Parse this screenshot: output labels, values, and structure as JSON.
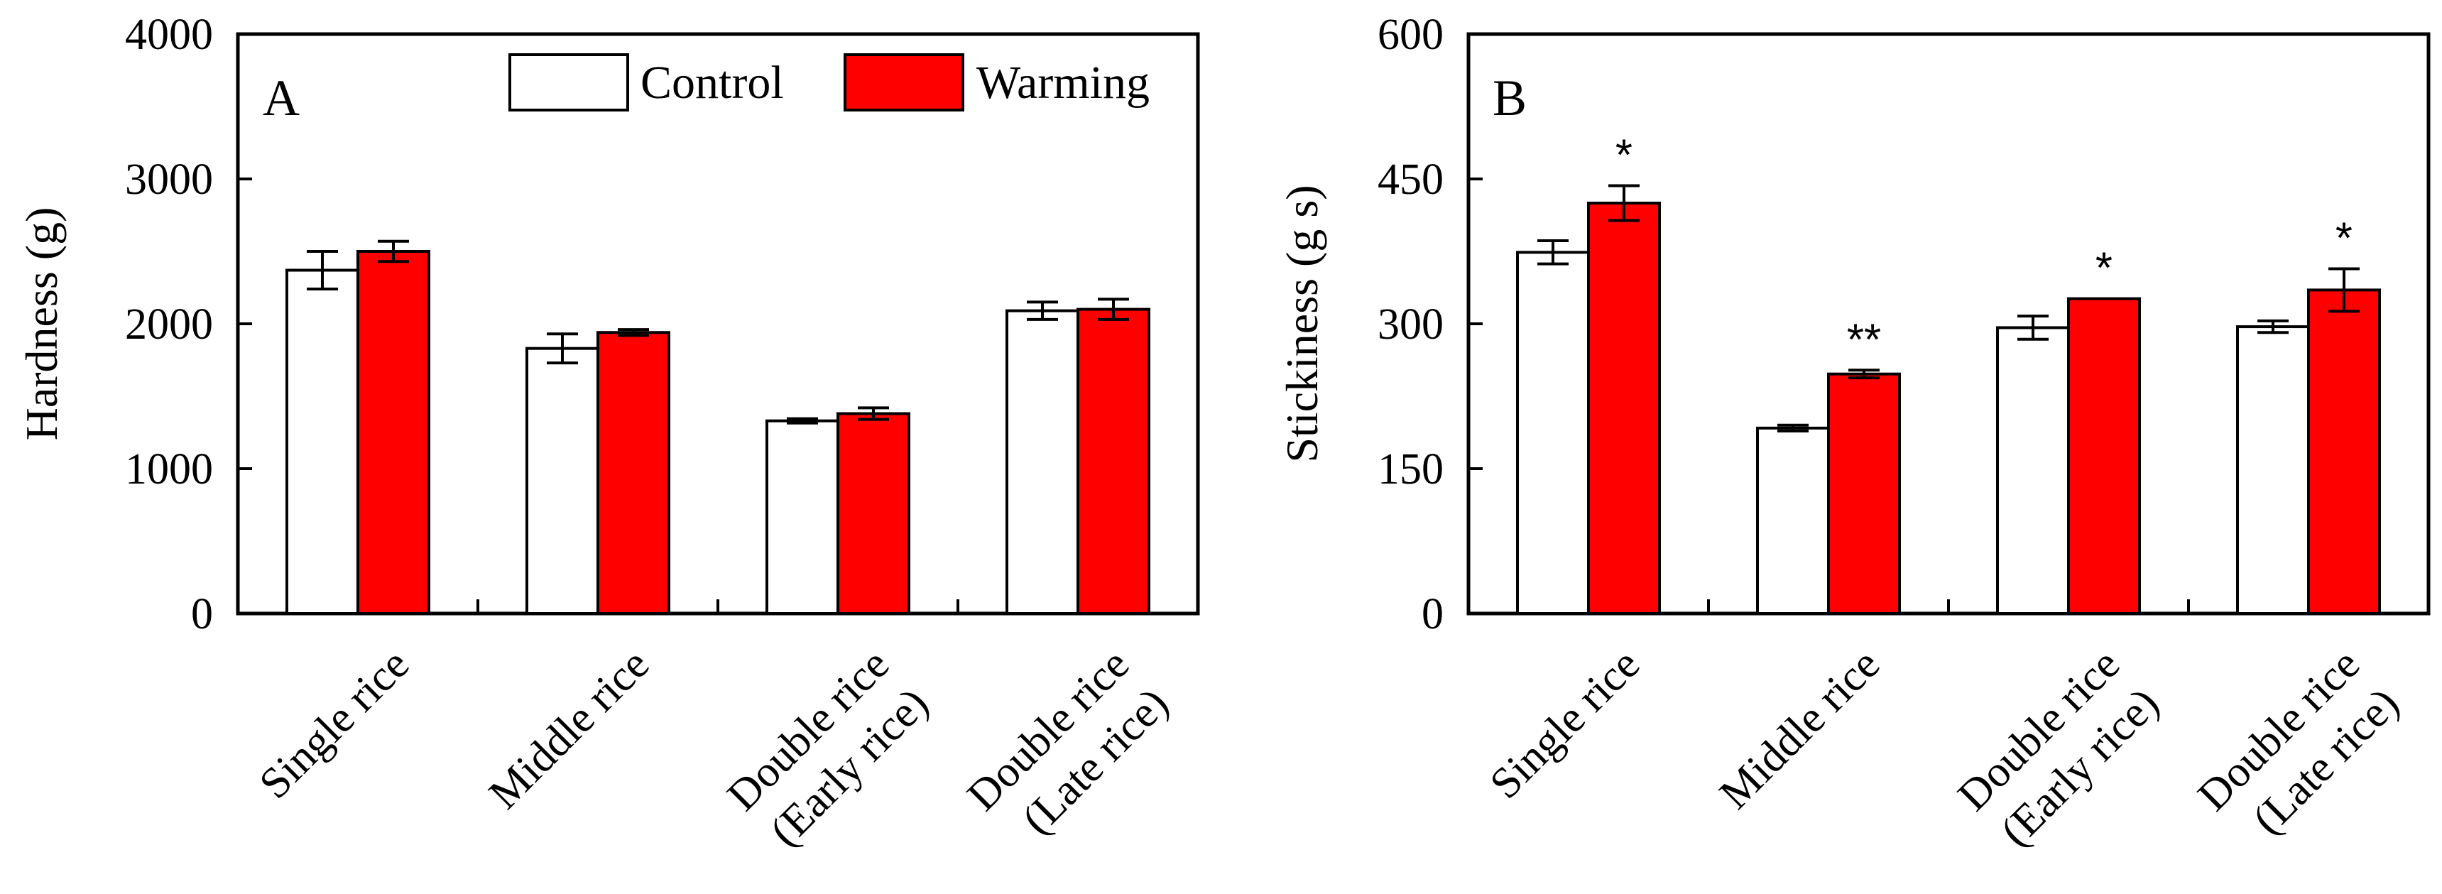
{
  "legend": {
    "control_label": "Control",
    "warming_label": "Warming"
  },
  "colors": {
    "control": "#ffffff",
    "warming": "#ff0000",
    "edge": "#000000"
  },
  "chart_data": [
    {
      "type": "bar",
      "panel_label": "A",
      "ylabel": "Hardness (g)",
      "xlabel": "",
      "ylim": [
        0,
        4000
      ],
      "yticks": [
        0,
        1000,
        2000,
        3000,
        4000
      ],
      "ytick_labels": [
        "0",
        "1000",
        "2000",
        "3000",
        "4000"
      ],
      "categories": [
        [
          "Single rice"
        ],
        [
          "Middle rice"
        ],
        [
          "Double rice",
          "(Early rice)"
        ],
        [
          "Double rice",
          "(Late rice)"
        ]
      ],
      "series": [
        {
          "name": "Control",
          "values": [
            2370,
            1830,
            1330,
            2090
          ],
          "errors": [
            130,
            100,
            15,
            60
          ]
        },
        {
          "name": "Warming",
          "values": [
            2500,
            1940,
            1380,
            2100
          ],
          "errors": [
            70,
            20,
            40,
            70
          ]
        }
      ],
      "significance": [
        "",
        "",
        "",
        ""
      ]
    },
    {
      "type": "bar",
      "panel_label": "B",
      "ylabel": "Stickiness (g s)",
      "xlabel": "",
      "ylim": [
        0,
        600
      ],
      "yticks": [
        0,
        150,
        300,
        450,
        600
      ],
      "ytick_labels": [
        "0",
        "150",
        "300",
        "450",
        "600"
      ],
      "categories": [
        [
          "Single rice"
        ],
        [
          "Middle rice"
        ],
        [
          "Double rice",
          "(Early rice)"
        ],
        [
          "Double rice",
          "(Late rice)"
        ]
      ],
      "series": [
        {
          "name": "Control",
          "values": [
            374,
            192,
            296,
            297
          ],
          "errors": [
            12,
            3,
            12,
            6
          ]
        },
        {
          "name": "Warming",
          "values": [
            425,
            248,
            326,
            335
          ],
          "errors": [
            18,
            4,
            0,
            22
          ]
        }
      ],
      "significance": [
        "*",
        "**",
        "*",
        "*"
      ]
    }
  ]
}
